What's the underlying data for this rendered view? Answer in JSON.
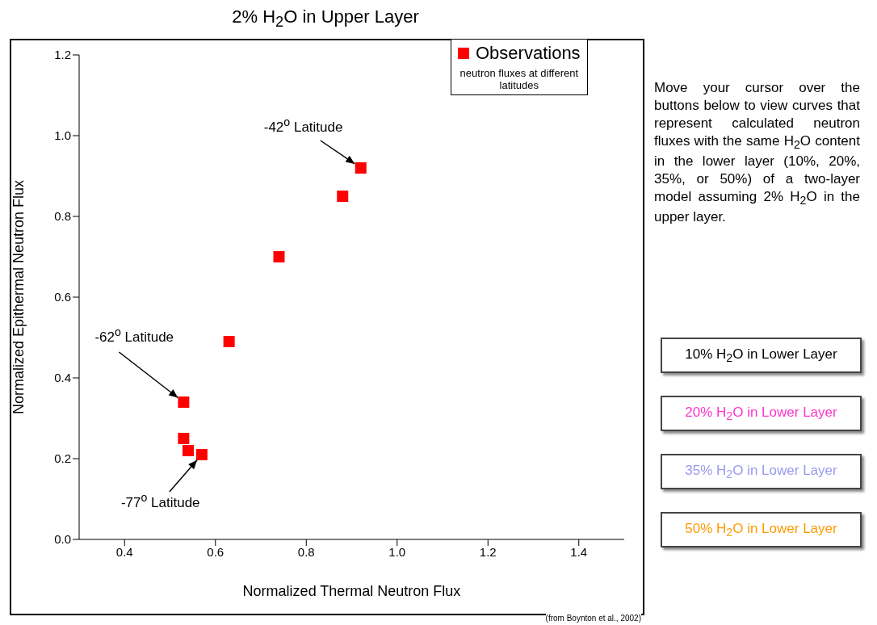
{
  "chart_data": {
    "type": "scatter",
    "title": "2% H$_{2}$O in Upper Layer",
    "xlabel": "Normalized Thermal Neutron Flux",
    "ylabel": "Normalized Epithermal Neutron Flux",
    "x": [
      0.92,
      0.88,
      0.74,
      0.63,
      0.53,
      0.53,
      0.54,
      0.57
    ],
    "series": [
      {
        "name": "Observations",
        "color": "#ff0000",
        "values": [
          0.92,
          0.85,
          0.7,
          0.49,
          0.34,
          0.25,
          0.22,
          0.21
        ]
      }
    ],
    "xlim": [
      0.3,
      1.5
    ],
    "ylim": [
      0,
      1.2
    ],
    "xticks": [
      0.4,
      0.6,
      0.8,
      {
        "value": 1,
        "label": "1.0"
      },
      1.2,
      1.4
    ],
    "yticks": [
      {
        "value": 0,
        "label": "0.0"
      },
      0.2,
      0.4,
      0.6,
      0.8,
      {
        "value": 1,
        "label": "1.0"
      },
      1.2
    ],
    "grid": false,
    "legend": "top right",
    "marker": "square",
    "annotations": [
      {
        "text": "-42$^{o}$ Latitude",
        "x": 0.92,
        "y": 0.92
      },
      {
        "text": "-62$^{o}$ Latitude",
        "x": 0.53,
        "y": 0.34
      },
      {
        "text": "-77$^{o}$ Latitude",
        "x": 0.57,
        "y": 0.21
      },
      "neutron fluxes at different latitudes",
      "(from Boynton et al., 2002)",
      "Move your cursor over the buttons below to view curves that represent calculated neutron fluxes with the same H$_{2}$O content in the lower layer (10%, 20%, 35%, or 50%) of a two-layer model assuming 2% H$_{2}$O in the upper layer.",
      "10% H$_{2}$O in Lower Layer",
      "20% H$_{2}$O in Lower Layer",
      "35% H$_{2}$O in Lower Layer",
      "50% H$_{2}$O in Lower Layer"
    ]
  }
}
